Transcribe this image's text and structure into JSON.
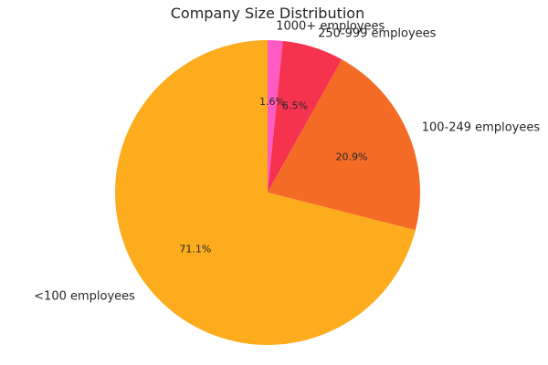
{
  "chart_data": {
    "type": "pie",
    "title": "Company Size Distribution",
    "start_angle_deg": 90,
    "direction": "clockwise",
    "slices": [
      {
        "label": "1000+ employees",
        "value": 1.6,
        "pct_label": "1.6%",
        "color": "#ff5bc2"
      },
      {
        "label": "250-999 employees",
        "value": 6.5,
        "pct_label": "6.5%",
        "color": "#f5334f"
      },
      {
        "label": "100-249 employees",
        "value": 20.9,
        "pct_label": "20.9%",
        "color": "#f46b26"
      },
      {
        "label": "<100 employees",
        "value": 71.1,
        "pct_label": "71.1%",
        "color": "#fdac1e"
      }
    ]
  }
}
